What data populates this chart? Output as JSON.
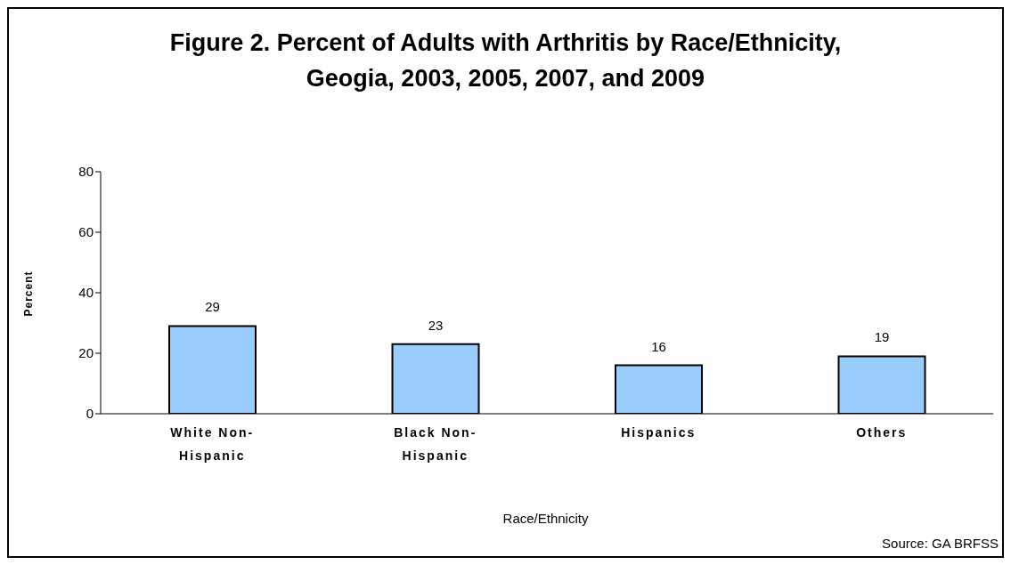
{
  "chart_data": {
    "type": "bar",
    "title": "Figure 2. Percent of Adults with Arthritis by Race/Ethnicity, Geogia, 2003, 2005, 2007, and 2009",
    "xlabel": "Race/Ethnicity",
    "ylabel": "Percent",
    "annotations": [
      "Source: GA BRFSS"
    ],
    "categories": [
      "White Non-Hispanic",
      "Black Non-Hispanic",
      "Hispanics",
      "Others"
    ],
    "values": [
      29,
      23,
      16,
      19
    ],
    "color": "#99ccff",
    "ylim": [
      0,
      80
    ],
    "yticks": [
      0,
      20,
      40,
      60,
      80
    ],
    "grid": false,
    "legend": false,
    "data_labels": true
  }
}
